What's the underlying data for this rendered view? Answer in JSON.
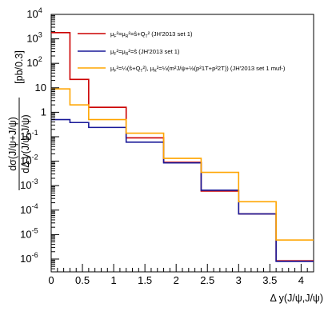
{
  "chart_data": {
    "type": "line",
    "step": true,
    "title": "",
    "xlabel": "Δ y(J/ψ,J/ψ)",
    "ylabel_numerator": "dσ(J/ψ+J/ψ)",
    "ylabel_denominator": "dΔ y(J/ψ,J/ψ)",
    "ylabel_unit": "[pb/0.3]",
    "xlim": [
      0,
      4.2
    ],
    "ylim": [
      3e-07,
      10000
    ],
    "yscale": "log",
    "x_ticks": [
      "0",
      "0.5",
      "1",
      "1.5",
      "2",
      "2.5",
      "3",
      "3.5",
      "4"
    ],
    "y_ticks": [
      {
        "base": "10",
        "exp": "4"
      },
      {
        "base": "10",
        "exp": "3"
      },
      {
        "base": "10",
        "exp": "2"
      },
      {
        "base": "10",
        "exp": ""
      },
      {
        "base": "1",
        "exp": ""
      },
      {
        "base": "10",
        "exp": "-1"
      },
      {
        "base": "10",
        "exp": "-2"
      },
      {
        "base": "10",
        "exp": "-3"
      },
      {
        "base": "10",
        "exp": "-4"
      },
      {
        "base": "10",
        "exp": "-5"
      },
      {
        "base": "10",
        "exp": "-6"
      }
    ],
    "bin_edges": [
      0,
      0.3,
      0.6,
      1.2,
      1.8,
      2.4,
      3.0,
      3.6,
      4.2
    ],
    "legend_position": "top-right",
    "series": [
      {
        "name": "μF²=μR²=ŝ+QT² (JH'2013 set 1)",
        "color": "#cc0000",
        "values": [
          1800,
          22,
          1.6,
          0.09,
          0.009,
          0.0006,
          7e-05,
          8.5e-07
        ]
      },
      {
        "name": "μF²=μR²=ŝ (JH'2013 set 1)",
        "color": "#1a1a99",
        "values": [
          0.5,
          0.38,
          0.24,
          0.06,
          0.0085,
          0.00065,
          7e-05,
          8e-07
        ]
      },
      {
        "name": "μF²=¼(ŝ+QT²), μR²=¼(m²J/ψ+½(p²1T+p²2T)) (JH'2013 set 1 muf-)",
        "color": "#ffa500",
        "values": [
          9,
          2,
          0.5,
          0.14,
          0.013,
          0.0035,
          0.00022,
          6e-06
        ]
      }
    ]
  },
  "legend": {
    "entries": [
      {
        "pre": "μ",
        "s1": "F",
        "p1": "²=μ",
        "s2": "R",
        "p2": "²=ŝ+Q",
        "s3": "T",
        "post": "² (JH'2013 set 1)"
      },
      {
        "pre": "μ",
        "s1": "F",
        "p1": "²=μ",
        "s2": "R",
        "p2": "²=ŝ",
        "s3": "",
        "post": " (JH'2013 set 1)"
      },
      {
        "pre": "μ",
        "s1": "F",
        "p1": "²=¼(ŝ+Q",
        "s2": "T",
        "p2": "²), μ",
        "s3": "R",
        "post": "²=¼(m²J/ψ+½(p²1T+p²2T)) (JH'2013 set 1  muf-)"
      }
    ]
  }
}
